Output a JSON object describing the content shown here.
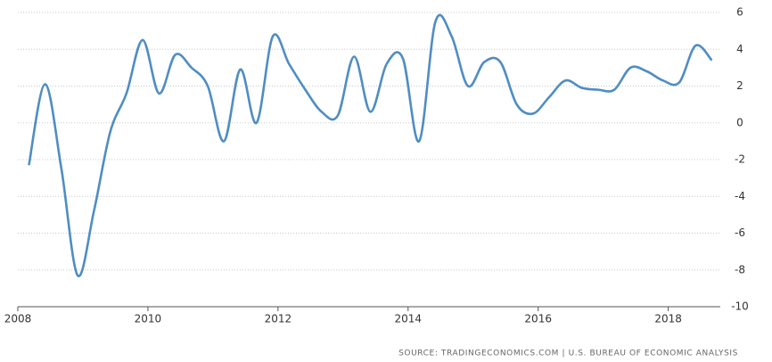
{
  "chart_data": {
    "type": "line",
    "source": "SOURCE: TRADINGECONOMICS.COM | U.S. BUREAU OF ECONOMIC ANALYSIS",
    "x": [
      2008.17,
      2008.42,
      2008.67,
      2008.92,
      2009.17,
      2009.42,
      2009.67,
      2009.92,
      2010.17,
      2010.42,
      2010.67,
      2010.92,
      2011.17,
      2011.42,
      2011.67,
      2011.92,
      2012.17,
      2012.42,
      2012.67,
      2012.92,
      2013.17,
      2013.42,
      2013.67,
      2013.92,
      2014.17,
      2014.42,
      2014.67,
      2014.92,
      2015.17,
      2015.42,
      2015.67,
      2015.92,
      2016.17,
      2016.42,
      2016.67,
      2016.92,
      2017.17,
      2017.42,
      2017.67,
      2017.92,
      2018.17,
      2018.42,
      2018.67
    ],
    "series": [
      {
        "color": "#4f8dc3",
        "values": [
          -2.3,
          2.1,
          -2.5,
          -8.3,
          -4.8,
          -0.5,
          1.6,
          4.5,
          1.6,
          3.7,
          3.0,
          2.0,
          -1.0,
          2.9,
          0,
          4.7,
          3.2,
          1.8,
          0.6,
          0.4,
          3.6,
          0.6,
          3.2,
          3.5,
          -1.0,
          5.5,
          4.7,
          2.0,
          3.3,
          3.3,
          1.0,
          0.5,
          1.4,
          2.3,
          1.9,
          1.8,
          1.8,
          3.0,
          2.8,
          2.3,
          2.2,
          4.2,
          3.4
        ]
      }
    ],
    "xlim": [
      2008,
      2018.8
    ],
    "xticks": [
      2008,
      2010,
      2012,
      2014,
      2016,
      2018
    ],
    "ylim": [
      -10,
      6
    ],
    "yticks": [
      -10,
      -8,
      -6,
      -4,
      -2,
      0,
      2,
      4,
      6
    ],
    "grid": true
  }
}
